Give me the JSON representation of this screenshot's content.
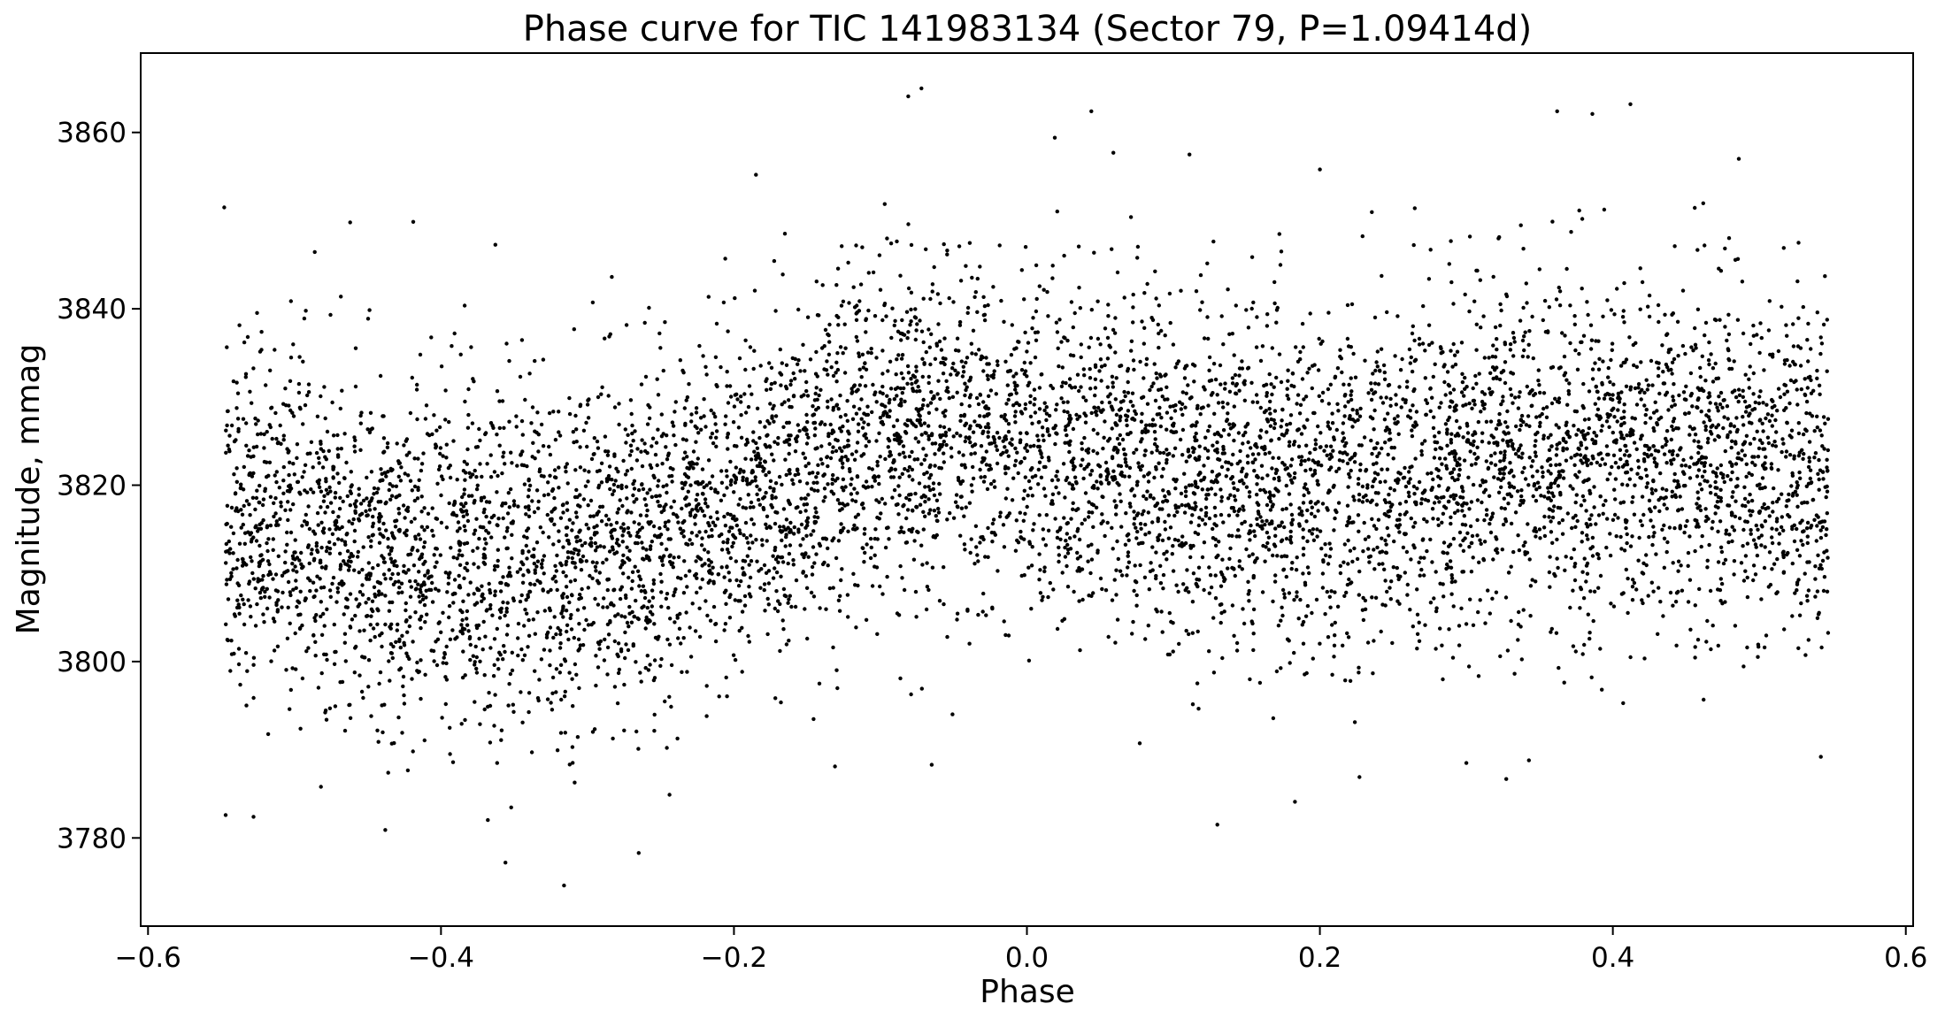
{
  "chart_data": {
    "type": "scatter",
    "title": "Phase curve for TIC 141983134 (Sector 79, P=1.09414d)",
    "xlabel": "Phase",
    "ylabel": "Magnitude, mmag",
    "xlim": [
      -0.605,
      0.605
    ],
    "ylim": [
      3770,
      3869
    ],
    "y_inverted": false,
    "xticks": [
      -0.6,
      -0.4,
      -0.2,
      0.0,
      0.2,
      0.4,
      0.6
    ],
    "xtick_labels": [
      "−0.6",
      "−0.4",
      "−0.2",
      "0.0",
      "0.2",
      "0.4",
      "0.6"
    ],
    "yticks": [
      3780,
      3800,
      3820,
      3840,
      3860
    ],
    "ytick_labels": [
      "3780",
      "3800",
      "3820",
      "3840",
      "3860"
    ],
    "grid": false,
    "legend": "none",
    "marker_color": "#000000",
    "series": [
      {
        "x_range": [
          -0.547,
          0.547
        ],
        "trend_phase": [
          -0.55,
          -0.5,
          -0.45,
          -0.4,
          -0.35,
          -0.3,
          -0.25,
          -0.2,
          -0.15,
          -0.1,
          -0.05,
          0.0,
          0.05,
          0.1,
          0.15,
          0.2,
          0.25,
          0.3,
          0.35,
          0.4,
          0.45,
          0.5,
          0.55
        ],
        "trend_magnitude": [
          3816,
          3815,
          3813,
          3812,
          3812,
          3813,
          3815,
          3818,
          3822,
          3825,
          3826,
          3825,
          3823,
          3821,
          3820,
          3820,
          3821,
          3823,
          3824,
          3824,
          3823,
          3822,
          3821
        ],
        "scatter_sd": 9.5,
        "outliers": [
          [
            -0.548,
            3851.5
          ],
          [
            -0.462,
            3849.8
          ],
          [
            -0.547,
            3782.6
          ],
          [
            -0.528,
            3782.4
          ],
          [
            -0.438,
            3780.9
          ],
          [
            -0.356,
            3777.2
          ],
          [
            -0.316,
            3774.6
          ],
          [
            -0.265,
            3778.3
          ],
          [
            -0.244,
            3784.9
          ],
          [
            -0.131,
            3788.1
          ],
          [
            -0.065,
            3788.3
          ],
          [
            -0.081,
            3864.1
          ],
          [
            -0.072,
            3865.0
          ],
          [
            0.019,
            3859.4
          ],
          [
            0.044,
            3862.4
          ],
          [
            0.059,
            3857.7
          ],
          [
            0.111,
            3857.5
          ],
          [
            0.13,
            3781.5
          ],
          [
            0.183,
            3784.1
          ],
          [
            0.2,
            3855.8
          ],
          [
            0.227,
            3786.9
          ],
          [
            0.362,
            3862.4
          ],
          [
            0.386,
            3862.1
          ],
          [
            0.412,
            3863.2
          ],
          [
            0.486,
            3857.0
          ],
          [
            0.3,
            3788.5
          ],
          [
            0.542,
            3789.2
          ],
          [
            -0.185,
            3855.2
          ]
        ]
      }
    ]
  }
}
